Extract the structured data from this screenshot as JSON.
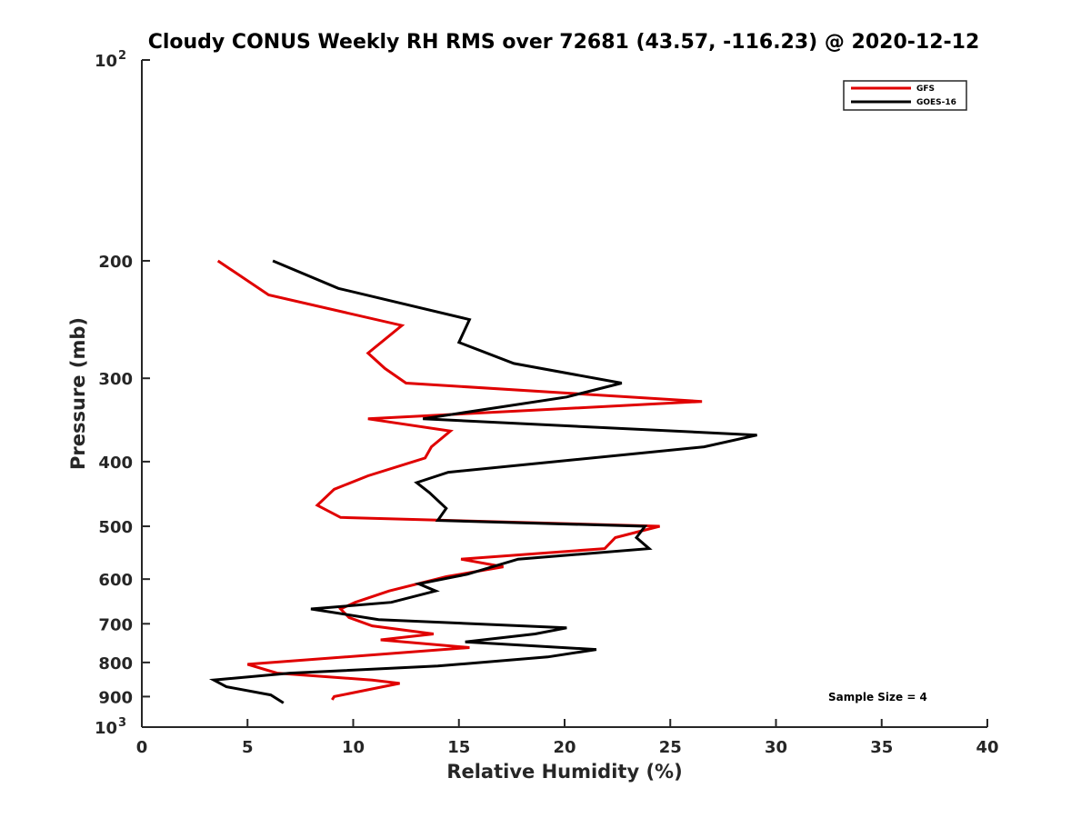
{
  "chart_data": {
    "type": "line",
    "title": "Cloudy CONUS Weekly RH RMS over 72681 (43.57, -116.23) @ 2020-12-12",
    "xlabel": "Relative Humidity (%)",
    "ylabel": "Pressure (mb)",
    "xlim": [
      0,
      40
    ],
    "ylim": [
      100,
      1000
    ],
    "yscale": "log",
    "y_reversed": true,
    "grid": false,
    "legend_position": "top-right",
    "x_ticks": [
      "0",
      "5",
      "10",
      "15",
      "20",
      "25",
      "30",
      "35",
      "40"
    ],
    "y_ticks": [
      {
        "value": 100,
        "base": "10",
        "exp": "2"
      },
      {
        "value": 200,
        "label": "200"
      },
      {
        "value": 300,
        "label": "300"
      },
      {
        "value": 400,
        "label": "400"
      },
      {
        "value": 500,
        "label": "500"
      },
      {
        "value": 600,
        "label": "600"
      },
      {
        "value": 700,
        "label": "700"
      },
      {
        "value": 800,
        "label": "800"
      },
      {
        "value": 900,
        "label": "900"
      },
      {
        "value": 1000,
        "base": "10",
        "exp": "3"
      }
    ],
    "annotation": "Sample Size = 4",
    "series": [
      {
        "name": "GFS",
        "color": "#e00000",
        "points": [
          [
            3.6,
            200
          ],
          [
            6.0,
            225
          ],
          [
            12.3,
            250
          ],
          [
            10.7,
            275
          ],
          [
            11.5,
            290
          ],
          [
            12.5,
            305
          ],
          [
            26.5,
            325
          ],
          [
            10.7,
            345
          ],
          [
            14.6,
            360
          ],
          [
            13.7,
            380
          ],
          [
            13.4,
            395
          ],
          [
            10.7,
            420
          ],
          [
            9.1,
            440
          ],
          [
            8.3,
            465
          ],
          [
            9.4,
            485
          ],
          [
            24.5,
            500
          ],
          [
            22.4,
            520
          ],
          [
            21.9,
            540
          ],
          [
            15.1,
            560
          ],
          [
            17.1,
            575
          ],
          [
            14.4,
            595
          ],
          [
            11.7,
            625
          ],
          [
            10.1,
            650
          ],
          [
            9.4,
            665
          ],
          [
            9.8,
            685
          ],
          [
            10.9,
            705
          ],
          [
            13.8,
            725
          ],
          [
            11.3,
            740
          ],
          [
            15.5,
            760
          ],
          [
            5.0,
            805
          ],
          [
            6.4,
            830
          ],
          [
            10.9,
            850
          ],
          [
            12.2,
            860
          ],
          [
            9.1,
            900
          ],
          [
            9.0,
            910
          ]
        ]
      },
      {
        "name": "GOES-16",
        "color": "#000000",
        "points": [
          [
            6.2,
            200
          ],
          [
            9.3,
            220
          ],
          [
            15.5,
            245
          ],
          [
            15.0,
            265
          ],
          [
            17.6,
            285
          ],
          [
            22.7,
            305
          ],
          [
            20.1,
            320
          ],
          [
            13.3,
            345
          ],
          [
            29.1,
            365
          ],
          [
            26.6,
            380
          ],
          [
            14.5,
            415
          ],
          [
            13.0,
            430
          ],
          [
            13.6,
            445
          ],
          [
            14.4,
            470
          ],
          [
            14.0,
            490
          ],
          [
            23.8,
            500
          ],
          [
            23.4,
            520
          ],
          [
            24.0,
            540
          ],
          [
            17.8,
            560
          ],
          [
            15.4,
            590
          ],
          [
            13.1,
            610
          ],
          [
            13.9,
            625
          ],
          [
            11.8,
            650
          ],
          [
            8.0,
            665
          ],
          [
            11.2,
            690
          ],
          [
            20.1,
            710
          ],
          [
            18.6,
            725
          ],
          [
            15.3,
            745
          ],
          [
            21.5,
            765
          ],
          [
            19.2,
            785
          ],
          [
            14.0,
            810
          ],
          [
            7.0,
            830
          ],
          [
            3.4,
            850
          ],
          [
            4.0,
            870
          ],
          [
            6.1,
            895
          ],
          [
            6.7,
            920
          ]
        ]
      }
    ]
  }
}
